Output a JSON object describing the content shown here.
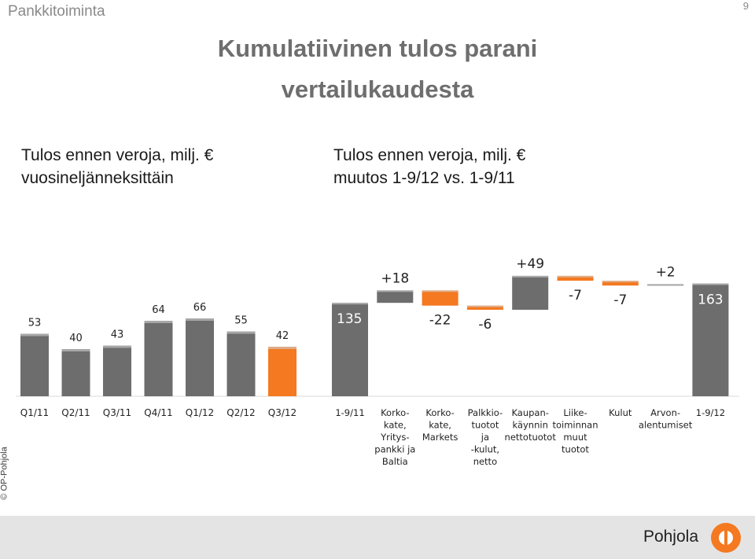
{
  "header": {
    "section_label": "Pankkitoiminta",
    "page_number": "9",
    "title_line1": "Kumulatiivinen tulos parani",
    "title_line2": "vertailukaudesta"
  },
  "subtitles": {
    "left_line1": "Tulos ennen veroja, milj. €",
    "left_line2": "vuosineljänneksittäin",
    "right_line1": "Tulos ennen veroja, milj. €",
    "right_line2": "muutos 1-9/12 vs. 1-9/11"
  },
  "colors": {
    "gray": "#6d6d6d",
    "orange": "#f47920",
    "footer": "#e4e4e4"
  },
  "chart_data": [
    {
      "type": "bar",
      "categories": [
        "Q1/11",
        "Q2/11",
        "Q3/11",
        "Q4/11",
        "Q1/12",
        "Q2/12",
        "Q3/12"
      ],
      "values": [
        53,
        40,
        43,
        64,
        66,
        55,
        42
      ],
      "labels": [
        "53",
        "40",
        "43",
        "64",
        "66",
        "55",
        "42"
      ],
      "highlight_index": 6,
      "ylim": [
        0,
        100
      ]
    },
    {
      "type": "waterfall",
      "categories": [
        [
          "1-9/11"
        ],
        [
          "Korko-",
          "kate,",
          "Yritys-",
          "pankki ja",
          "Baltia"
        ],
        [
          "Korko-",
          "kate,",
          "Markets"
        ],
        [
          "Palkkio-",
          "tuotot",
          "ja",
          "-kulut,",
          "netto"
        ],
        [
          "Kaupan-",
          "käynnin",
          "nettotuotot"
        ],
        [
          "Liike-",
          "toiminnan",
          "muut",
          "tuotot"
        ],
        [
          "Kulut"
        ],
        [
          "Arvon-",
          "alentumiset"
        ],
        [
          "1-9/12"
        ]
      ],
      "values": [
        135,
        18,
        -22,
        -6,
        49,
        -7,
        -7,
        2,
        163
      ],
      "labels": [
        "135",
        "+18",
        "-22",
        "-6",
        "+49",
        "-7",
        "-7",
        "+2",
        "163"
      ],
      "kinds": [
        "total",
        "delta",
        "delta",
        "delta",
        "delta",
        "delta",
        "delta",
        "delta",
        "total"
      ]
    }
  ],
  "footer": {
    "copyright": "© OP-Pohjola",
    "brand": "Pohjola"
  }
}
